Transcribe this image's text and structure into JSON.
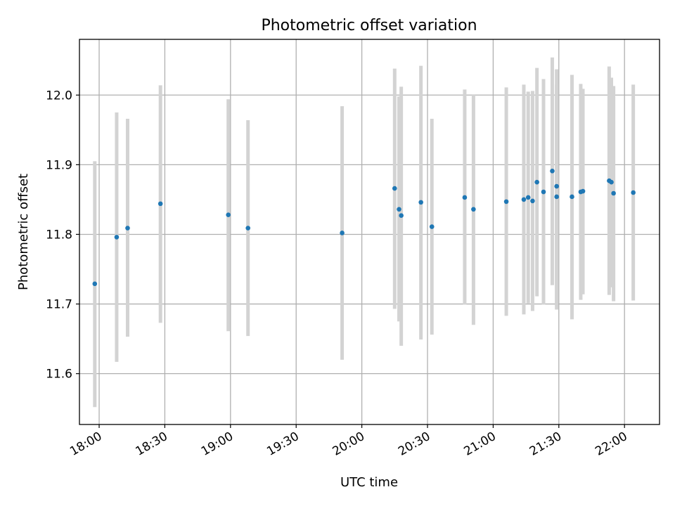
{
  "chart_data": {
    "type": "scatter",
    "title": "Photometric offset variation",
    "xlabel": "UTC time",
    "ylabel": "Photometric offset",
    "xlim": [
      "17:51",
      "22:16"
    ],
    "ylim": [
      11.527,
      12.08
    ],
    "grid": true,
    "legend": "none",
    "x_ticks": [
      "18:00",
      "18:30",
      "19:00",
      "19:30",
      "20:00",
      "20:30",
      "21:00",
      "21:30",
      "22:00"
    ],
    "y_ticks": [
      11.6,
      11.7,
      11.8,
      11.9,
      12.0
    ],
    "y_tick_labels": [
      "11.6",
      "11.7",
      "11.8",
      "11.9",
      "12.0"
    ],
    "point_color": "#1f77b4",
    "errorbar_color": "#d3d3d3",
    "points": [
      {
        "t": "17:58",
        "y": 11.729,
        "lo": 11.552,
        "hi": 11.905
      },
      {
        "t": "18:08",
        "y": 11.796,
        "lo": 11.617,
        "hi": 11.975
      },
      {
        "t": "18:13",
        "y": 11.809,
        "lo": 11.653,
        "hi": 11.966
      },
      {
        "t": "18:28",
        "y": 11.844,
        "lo": 11.673,
        "hi": 12.014
      },
      {
        "t": "18:59",
        "y": 11.828,
        "lo": 11.661,
        "hi": 11.994
      },
      {
        "t": "19:08",
        "y": 11.809,
        "lo": 11.654,
        "hi": 11.964
      },
      {
        "t": "19:51",
        "y": 11.802,
        "lo": 11.62,
        "hi": 11.984
      },
      {
        "t": "20:15",
        "y": 11.866,
        "lo": 11.693,
        "hi": 12.038
      },
      {
        "t": "20:17",
        "y": 11.836,
        "lo": 11.675,
        "hi": 11.998
      },
      {
        "t": "20:18",
        "y": 11.827,
        "lo": 11.64,
        "hi": 12.012
      },
      {
        "t": "20:27",
        "y": 11.846,
        "lo": 11.649,
        "hi": 12.042
      },
      {
        "t": "20:32",
        "y": 11.811,
        "lo": 11.656,
        "hi": 11.966
      },
      {
        "t": "20:47",
        "y": 11.853,
        "lo": 11.699,
        "hi": 12.008
      },
      {
        "t": "20:51",
        "y": 11.836,
        "lo": 11.67,
        "hi": 12.001
      },
      {
        "t": "21:06",
        "y": 11.847,
        "lo": 11.683,
        "hi": 12.011
      },
      {
        "t": "21:14",
        "y": 11.85,
        "lo": 11.685,
        "hi": 12.015
      },
      {
        "t": "21:16",
        "y": 11.853,
        "lo": 11.701,
        "hi": 12.005
      },
      {
        "t": "21:18",
        "y": 11.848,
        "lo": 11.69,
        "hi": 12.006
      },
      {
        "t": "21:20",
        "y": 11.875,
        "lo": 11.711,
        "hi": 12.039
      },
      {
        "t": "21:23",
        "y": 11.861,
        "lo": 11.699,
        "hi": 12.023
      },
      {
        "t": "21:27",
        "y": 11.891,
        "lo": 11.727,
        "hi": 12.054
      },
      {
        "t": "21:29",
        "y": 11.869,
        "lo": 11.701,
        "hi": 12.037
      },
      {
        "t": "21:29",
        "y": 11.854,
        "lo": 11.692,
        "hi": 12.015
      },
      {
        "t": "21:36",
        "y": 11.854,
        "lo": 11.678,
        "hi": 12.029
      },
      {
        "t": "21:40",
        "y": 11.861,
        "lo": 11.706,
        "hi": 12.016
      },
      {
        "t": "21:41",
        "y": 11.862,
        "lo": 11.714,
        "hi": 12.009
      },
      {
        "t": "21:53",
        "y": 11.877,
        "lo": 11.713,
        "hi": 12.041
      },
      {
        "t": "21:54",
        "y": 11.875,
        "lo": 11.724,
        "hi": 12.025
      },
      {
        "t": "21:55",
        "y": 11.859,
        "lo": 11.704,
        "hi": 12.013
      },
      {
        "t": "22:04",
        "y": 11.86,
        "lo": 11.705,
        "hi": 12.015
      }
    ]
  }
}
